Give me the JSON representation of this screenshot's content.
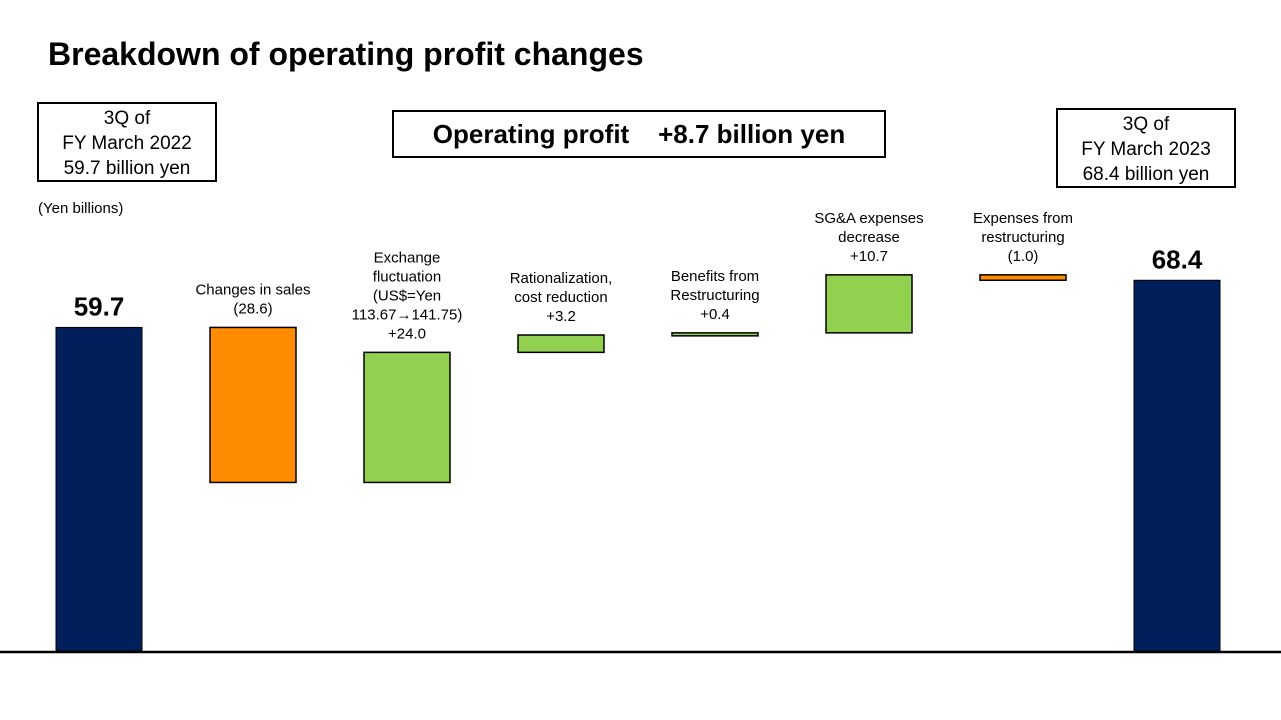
{
  "slide": {
    "title": "Breakdown of operating profit changes",
    "start_box": [
      "3Q of",
      "FY March 2022",
      "59.7 billion  yen"
    ],
    "end_box": [
      "3Q of",
      "FY March 2023",
      "68.4 billion  yen"
    ],
    "summary": "Operating profit    +8.7 billion yen",
    "unit_label": "(Yen billions)"
  },
  "chart_data": {
    "type": "bar",
    "subtype": "waterfall",
    "start": 59.7,
    "end": 68.4,
    "ylim": [
      0,
      70
    ],
    "grid": false,
    "legend": "none",
    "colors": {
      "total": "#001f5b",
      "increase": "#92d050",
      "decrease": "#ff8c00"
    },
    "steps": [
      {
        "label": [
          "Changes in sales",
          "(28.6)"
        ],
        "value": -28.6
      },
      {
        "label": [
          "Exchange",
          "fluctuation",
          "(US$=Yen",
          "113.67→141.75)",
          "+24.0"
        ],
        "value": 24.0
      },
      {
        "label": [
          "Rationalization,",
          "cost reduction",
          "+3.2"
        ],
        "value": 3.2
      },
      {
        "label": [
          "Benefits from",
          "Restructuring",
          "+0.4"
        ],
        "value": 0.4
      },
      {
        "label": [
          "SG&A expenses",
          "decrease",
          "+10.7"
        ],
        "value": 10.7
      },
      {
        "label": [
          "Expenses from",
          "restructuring",
          "(1.0)"
        ],
        "value": -1.0
      }
    ],
    "start_label": "59.7",
    "end_label": "68.4"
  }
}
